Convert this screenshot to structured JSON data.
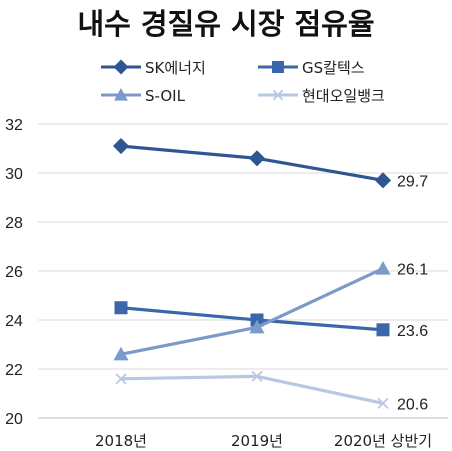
{
  "chart_data": {
    "type": "line",
    "title": "내수 경질유 시장 점유율",
    "categories": [
      "2018년",
      "2019년",
      "2020년 상반기"
    ],
    "ylim": [
      20,
      32
    ],
    "yticks": [
      20,
      22,
      24,
      26,
      28,
      30,
      32
    ],
    "grid": true,
    "legend_position": "top",
    "series": [
      {
        "name": "SK에너지",
        "values": [
          31.1,
          30.6,
          29.7
        ],
        "color": "#2f5693",
        "marker": "diamond",
        "end_label": "29.7"
      },
      {
        "name": "GS칼텍스",
        "values": [
          24.5,
          24.0,
          23.6
        ],
        "color": "#3a67ab",
        "marker": "square",
        "end_label": "23.6"
      },
      {
        "name": "S-OIL",
        "values": [
          22.6,
          23.7,
          26.1
        ],
        "color": "#7c9ac9",
        "marker": "triangle",
        "end_label": "26.1"
      },
      {
        "name": "현대오일뱅크",
        "values": [
          21.6,
          21.7,
          20.6
        ],
        "color": "#b8c8e2",
        "marker": "x",
        "end_label": "20.6"
      }
    ]
  }
}
